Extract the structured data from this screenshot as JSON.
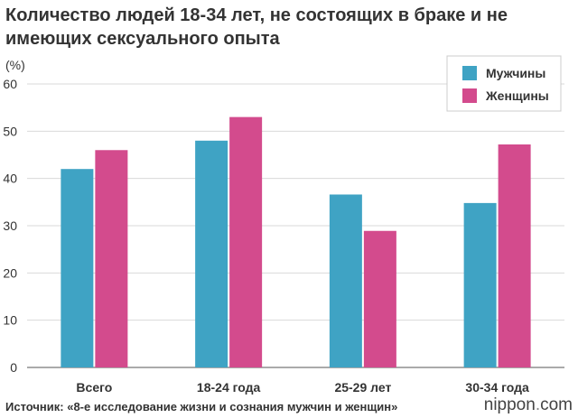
{
  "chart_data": {
    "type": "bar",
    "title": "Количество людей 18-34 лет, не состоящих в браке и не имеющих сексуального опыта",
    "ylabel": "(%)",
    "xlabel": "",
    "ylim": [
      0,
      60
    ],
    "yticks": [
      0,
      10,
      20,
      30,
      40,
      50,
      60
    ],
    "grid": true,
    "legend_position": "top-right",
    "categories": [
      "Всего",
      "18-24 года",
      "25-29 лет",
      "30-34 года"
    ],
    "series": [
      {
        "name": "Мужчины",
        "color": "#3fa3c4",
        "values": [
          42,
          48,
          36.6,
          34.8
        ]
      },
      {
        "name": "Женщины",
        "color": "#d34b8d",
        "values": [
          46,
          53,
          28.9,
          47.2
        ]
      }
    ]
  },
  "source": "Источник: «8-е исследование жизни и сознания мужчин и женщин»",
  "brand": {
    "pre": "nippon",
    "dot": ".",
    "post": "com"
  }
}
